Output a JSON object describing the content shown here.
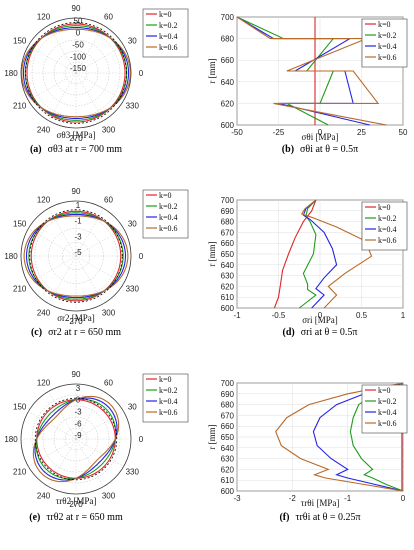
{
  "series_names": [
    "k=0",
    "k=0.2",
    "k=0.4",
    "k=0.6"
  ],
  "series_colors": [
    "#e0242a",
    "#1a9e1a",
    "#2323e6",
    "#b86a2a"
  ],
  "panels": [
    {
      "id": "a",
      "type": "polar",
      "caption": {
        "label": "(a)",
        "main": "σθ3 at r = 700 mm"
      },
      "xlabel": "σθ3 [MPa]",
      "angle_labels": [
        "90",
        "120",
        "60",
        "150",
        "30",
        "180",
        "0",
        "210",
        "330",
        "240",
        "300",
        "270"
      ],
      "radial_tick_labels": [
        "50",
        "0",
        "-50",
        "-100",
        "-150"
      ],
      "rlim": [
        -170,
        60
      ],
      "series": [
        {
          "name": "k=0",
          "r_at_0deg": 35,
          "r_at_90deg": 35
        },
        {
          "name": "k=0.2",
          "r_at_0deg": 42,
          "r_at_90deg": 28
        },
        {
          "name": "k=0.4",
          "r_at_0deg": 50,
          "r_at_90deg": 20
        },
        {
          "name": "k=0.6",
          "r_at_0deg": 57,
          "r_at_90deg": 13
        }
      ]
    },
    {
      "id": "b",
      "type": "line",
      "caption": {
        "label": "(b)",
        "main": "σθi at θ = 0.5π"
      },
      "xlabel": "σθi [MPa]",
      "ylabel": "r [mm]",
      "xlim": [
        -50,
        50
      ],
      "ylim": [
        600,
        700
      ],
      "xticks": [
        -50,
        -25,
        0,
        25,
        50
      ],
      "yticks": [
        600,
        620,
        640,
        660,
        680,
        700
      ],
      "series": [
        {
          "name": "k=0",
          "x": [
            -3,
            -3,
            -3,
            -3,
            -3,
            -3,
            -3,
            -3
          ],
          "y": [
            600,
            620,
            620,
            650,
            650,
            680,
            680,
            700
          ]
        },
        {
          "name": "k=0.2",
          "x": [
            5,
            -20,
            0,
            8,
            -8,
            8,
            -22,
            -50
          ],
          "y": [
            600,
            620,
            620,
            650,
            650,
            680,
            680,
            700
          ]
        },
        {
          "name": "k=0.4",
          "x": [
            30,
            -25,
            20,
            15,
            -15,
            18,
            -28,
            -50
          ],
          "y": [
            600,
            620,
            620,
            650,
            650,
            680,
            680,
            700
          ]
        },
        {
          "name": "k=0.6",
          "x": [
            40,
            -28,
            35,
            20,
            -20,
            28,
            -30,
            -50
          ],
          "y": [
            600,
            620,
            620,
            650,
            650,
            680,
            680,
            700
          ]
        }
      ]
    },
    {
      "id": "c",
      "type": "polar",
      "caption": {
        "label": "(c)",
        "main": "σr2 at r = 650 mm"
      },
      "xlabel": "σr2 [MPa]",
      "angle_labels": [
        "90",
        "120",
        "60",
        "150",
        "30",
        "180",
        "0",
        "210",
        "330",
        "240",
        "300",
        "270"
      ],
      "radial_tick_labels": [
        "1",
        "-1",
        "-3",
        "-5"
      ],
      "rlim": [
        -5.5,
        1.5
      ],
      "series": [
        {
          "name": "k=0",
          "r_at_0deg": 0.2,
          "r_at_90deg": 0.2
        },
        {
          "name": "k=0.2",
          "r_at_0deg": 0.5,
          "r_at_90deg": 0.0
        },
        {
          "name": "k=0.4",
          "r_at_0deg": 0.8,
          "r_at_90deg": -0.2
        },
        {
          "name": "k=0.6",
          "r_at_0deg": 1.1,
          "r_at_90deg": -0.4
        }
      ]
    },
    {
      "id": "d",
      "type": "line",
      "caption": {
        "label": "(d)",
        "main": "σri at θ = 0.5π"
      },
      "xlabel": "σri [MPa]",
      "ylabel": "r [mm]",
      "xlim": [
        -1,
        1
      ],
      "ylim": [
        600,
        700
      ],
      "xticks": [
        -1,
        -0.5,
        0,
        0.5,
        1
      ],
      "yticks": [
        600,
        610,
        620,
        630,
        640,
        650,
        660,
        670,
        680,
        690,
        700
      ],
      "series": [
        {
          "name": "k=0",
          "x": [
            -0.05,
            -0.1,
            -0.2,
            -0.3,
            -0.38,
            -0.45,
            -0.48,
            -0.5,
            -0.55
          ],
          "y": [
            700,
            690,
            680,
            665,
            650,
            635,
            620,
            610,
            600
          ]
        },
        {
          "name": "k=0.2",
          "x": [
            -0.05,
            -0.15,
            -0.17,
            -0.12,
            -0.05,
            -0.08,
            -0.2,
            -0.15,
            -0.15,
            -0.05,
            -0.15,
            -0.25
          ],
          "y": [
            700,
            692,
            685,
            680,
            668,
            650,
            632,
            622,
            617,
            612,
            606,
            600
          ]
        },
        {
          "name": "k=0.4",
          "x": [
            -0.05,
            -0.17,
            -0.2,
            -0.12,
            0.05,
            0.15,
            0.2,
            0.05,
            -0.05,
            0.05,
            -0.1
          ],
          "y": [
            700,
            692,
            686,
            682,
            670,
            655,
            640,
            628,
            618,
            612,
            600
          ]
        },
        {
          "name": "k=0.6",
          "x": [
            -0.05,
            -0.18,
            -0.22,
            -0.1,
            0.2,
            0.55,
            0.62,
            0.3,
            0.1,
            0.2,
            0.05
          ],
          "y": [
            700,
            692,
            687,
            684,
            675,
            662,
            648,
            632,
            620,
            612,
            600
          ]
        }
      ]
    },
    {
      "id": "e",
      "type": "polar",
      "caption": {
        "label": "(e)",
        "main": "τrθ2 at r = 650 mm"
      },
      "xlabel": "τrθ2 [MPa]",
      "angle_labels": [
        "90",
        "120",
        "60",
        "150",
        "30",
        "180",
        "0",
        "210",
        "330",
        "240",
        "300",
        "270"
      ],
      "radial_tick_labels": [
        "3",
        "0",
        "-3",
        "-6",
        "-9"
      ],
      "rlim": [
        -10,
        4
      ],
      "series": [
        {
          "name": "k=0",
          "r_at_45deg": 0.0,
          "r_at_135deg": 0.0
        },
        {
          "name": "k=0.2",
          "r_at_45deg": 0.8,
          "r_at_135deg": -0.8
        },
        {
          "name": "k=0.4",
          "r_at_45deg": 1.6,
          "r_at_135deg": -1.6
        },
        {
          "name": "k=0.6",
          "r_at_45deg": 2.4,
          "r_at_135deg": -2.4
        }
      ]
    },
    {
      "id": "f",
      "type": "line",
      "caption": {
        "label": "(f)",
        "main": "τrθi at θ = 0.25π"
      },
      "xlabel": "τrθi [MPa]",
      "ylabel": "r [mm]",
      "xlim": [
        -3,
        0
      ],
      "ylim": [
        600,
        700
      ],
      "xticks": [
        -3,
        -2,
        -1,
        0
      ],
      "yticks": [
        600,
        610,
        620,
        630,
        640,
        650,
        660,
        670,
        680,
        690,
        700
      ],
      "series": [
        {
          "name": "k=0",
          "x": [
            -0.02,
            -0.02
          ],
          "y": [
            700,
            600
          ]
        },
        {
          "name": "k=0.2",
          "x": [
            0,
            -0.5,
            -0.8,
            -0.9,
            -0.95,
            -0.9,
            -0.75,
            -0.55,
            -0.7,
            -0.55,
            -0.3,
            0
          ],
          "y": [
            700,
            690,
            680,
            668,
            655,
            642,
            630,
            620,
            615,
            612,
            606,
            600
          ]
        },
        {
          "name": "k=0.4",
          "x": [
            0,
            -0.7,
            -1.2,
            -1.5,
            -1.62,
            -1.55,
            -1.3,
            -1.0,
            -1.2,
            -1.0,
            -0.5,
            0
          ],
          "y": [
            700,
            690,
            680,
            668,
            655,
            642,
            630,
            620,
            615,
            612,
            606,
            600
          ]
        },
        {
          "name": "k=0.6",
          "x": [
            0,
            -1.0,
            -1.7,
            -2.1,
            -2.3,
            -2.2,
            -1.85,
            -1.35,
            -1.6,
            -1.4,
            -0.7,
            0
          ],
          "y": [
            700,
            690,
            680,
            668,
            655,
            642,
            630,
            620,
            615,
            612,
            606,
            600
          ]
        }
      ]
    }
  ]
}
